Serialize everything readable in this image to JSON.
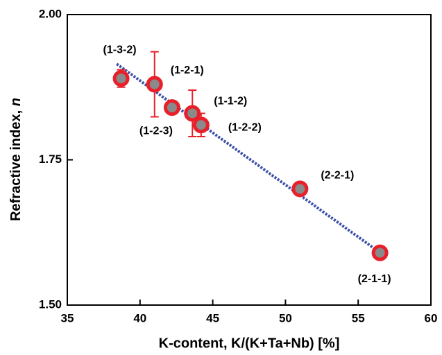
{
  "chart_data": {
    "type": "scatter",
    "x_label": "K-content, K/(K+Ta+Nb) [%]",
    "y_label": "Refractive index, ",
    "y_label_symbol": "n",
    "xlim": [
      35,
      60
    ],
    "xticks": [
      35,
      40,
      45,
      50,
      55,
      60
    ],
    "ylim": [
      1.5,
      2.0
    ],
    "yticks": [
      {
        "value": 1.5,
        "label": "1.50"
      },
      {
        "value": 1.75,
        "label": "1.75"
      },
      {
        "value": 2.0,
        "label": "2.00"
      }
    ],
    "labels": [
      "(1-3-2)",
      "(1-2-1)",
      "(1-2-3)",
      "(1-1-2)",
      "(1-2-2)",
      "(2-2-1)",
      "(2-1-1)"
    ],
    "x": [
      38.7,
      41.0,
      42.2,
      43.6,
      44.2,
      51.0,
      56.5
    ],
    "y": [
      1.89,
      1.88,
      1.84,
      1.83,
      1.81,
      1.7,
      1.59
    ],
    "errors": [
      0.015,
      0.056,
      null,
      0.04,
      0.02,
      null,
      null
    ],
    "color": "#e8202a",
    "fill": "#8a8a8a",
    "fit": {
      "x": [
        38.4,
        56.8
      ],
      "y": [
        1.915,
        1.585
      ],
      "color": "#3a4fa8"
    }
  }
}
